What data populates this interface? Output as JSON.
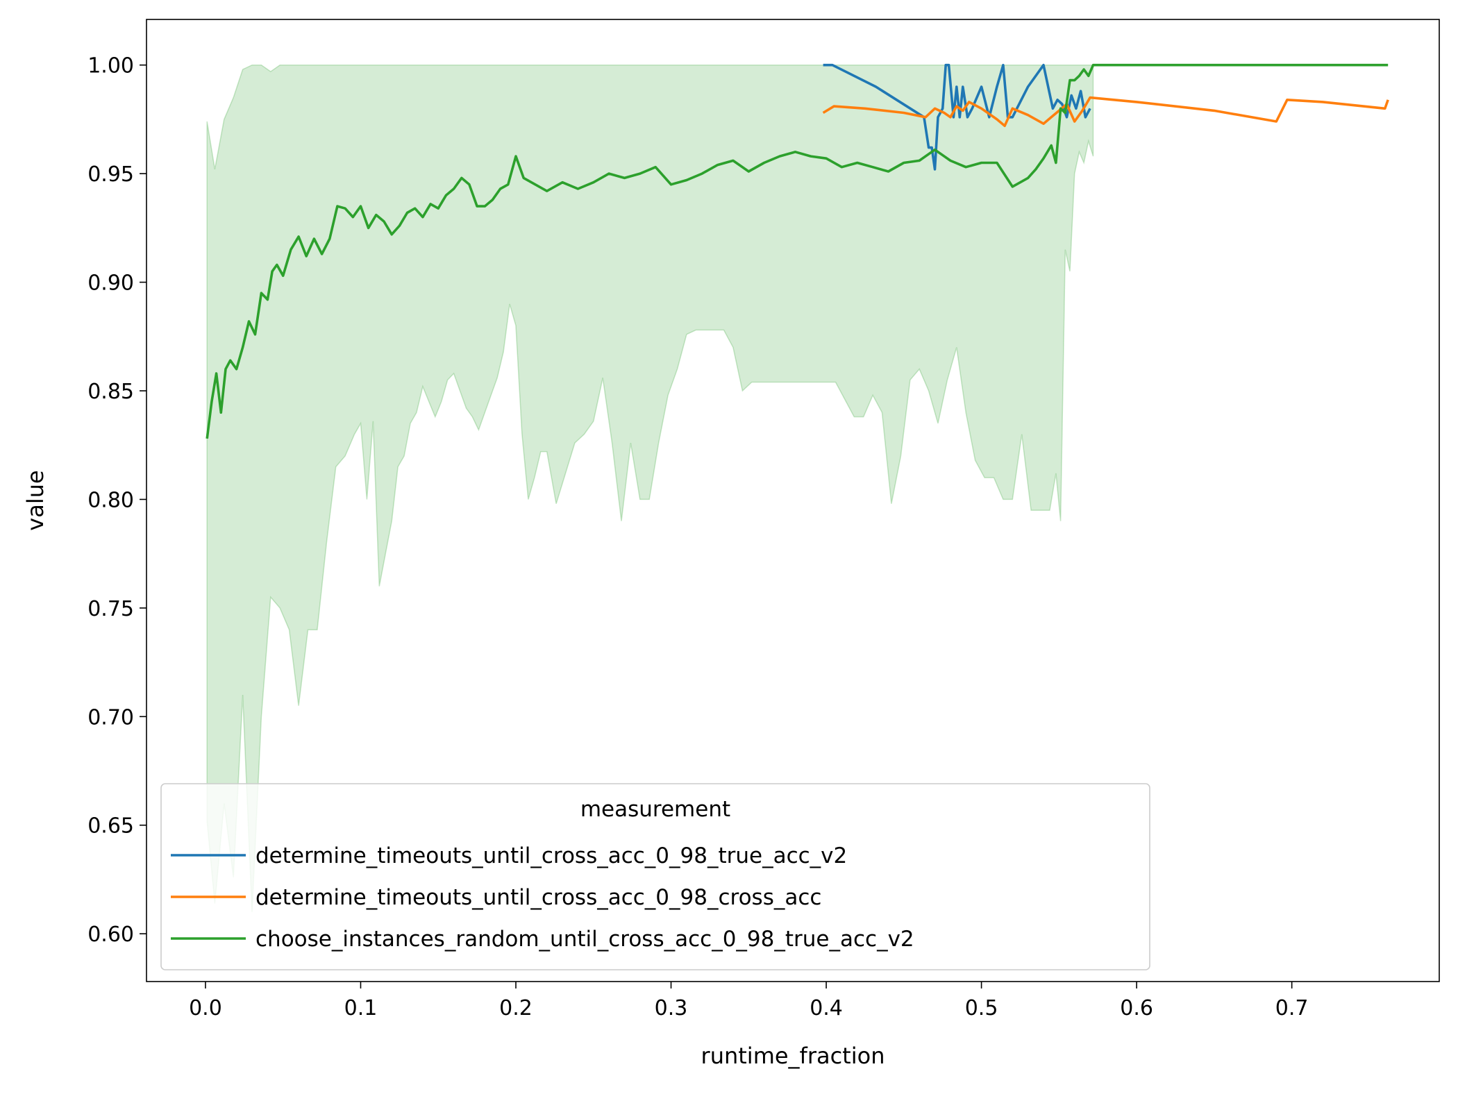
{
  "chart_data": {
    "type": "line",
    "xlabel": "runtime_fraction",
    "ylabel": "value",
    "xlim": [
      -0.038,
      0.795
    ],
    "ylim": [
      0.578,
      1.021
    ],
    "xticks": [
      0.0,
      0.1,
      0.2,
      0.3,
      0.4,
      0.5,
      0.6,
      0.7
    ],
    "xtick_labels": [
      "0.0",
      "0.1",
      "0.2",
      "0.3",
      "0.4",
      "0.5",
      "0.6",
      "0.7"
    ],
    "yticks": [
      0.6,
      0.65,
      0.7,
      0.75,
      0.8,
      0.85,
      0.9,
      0.95,
      1.0
    ],
    "ytick_labels": [
      "0.60",
      "0.65",
      "0.70",
      "0.75",
      "0.80",
      "0.85",
      "0.90",
      "0.95",
      "1.00"
    ],
    "grid": false,
    "legend": {
      "title": "measurement",
      "placement": "lower-left"
    },
    "series": [
      {
        "name": "determine_timeouts_until_cross_acc_0_98_true_acc_v2",
        "color": "#1f77b4",
        "x": [
          0.398,
          0.404,
          0.432,
          0.463,
          0.466,
          0.468,
          0.47,
          0.472,
          0.475,
          0.477,
          0.479,
          0.482,
          0.484,
          0.486,
          0.488,
          0.491,
          0.494,
          0.5,
          0.505,
          0.51,
          0.514,
          0.517,
          0.52,
          0.53,
          0.54,
          0.543,
          0.546,
          0.549,
          0.552,
          0.555,
          0.558,
          0.561,
          0.564,
          0.567,
          0.57
        ],
        "y": [
          1.0,
          1.0,
          0.99,
          0.976,
          0.962,
          0.962,
          0.952,
          0.976,
          0.98,
          1.0,
          1.0,
          0.976,
          0.99,
          0.976,
          0.99,
          0.976,
          0.98,
          0.99,
          0.976,
          0.99,
          1.0,
          0.976,
          0.976,
          0.99,
          1.0,
          0.99,
          0.98,
          0.984,
          0.982,
          0.976,
          0.986,
          0.98,
          0.988,
          0.976,
          0.98
        ]
      },
      {
        "name": "determine_timeouts_until_cross_acc_0_98_cross_acc",
        "color": "#ff7f0e",
        "x": [
          0.398,
          0.405,
          0.425,
          0.45,
          0.464,
          0.47,
          0.476,
          0.48,
          0.484,
          0.488,
          0.492,
          0.5,
          0.51,
          0.515,
          0.52,
          0.53,
          0.54,
          0.545,
          0.55,
          0.555,
          0.56,
          0.565,
          0.57,
          0.6,
          0.65,
          0.69,
          0.697,
          0.72,
          0.76,
          0.762
        ],
        "y": [
          0.978,
          0.981,
          0.98,
          0.978,
          0.976,
          0.98,
          0.978,
          0.976,
          0.981,
          0.979,
          0.983,
          0.98,
          0.975,
          0.972,
          0.98,
          0.977,
          0.973,
          0.976,
          0.979,
          0.982,
          0.974,
          0.979,
          0.985,
          0.983,
          0.979,
          0.974,
          0.984,
          0.983,
          0.98,
          0.984
        ]
      },
      {
        "name": "choose_instances_random_until_cross_acc_0_98_true_acc_v2",
        "color": "#2ca02c",
        "x": [
          0.001,
          0.004,
          0.007,
          0.01,
          0.013,
          0.016,
          0.02,
          0.024,
          0.028,
          0.032,
          0.036,
          0.04,
          0.043,
          0.046,
          0.05,
          0.055,
          0.06,
          0.065,
          0.07,
          0.075,
          0.08,
          0.085,
          0.09,
          0.095,
          0.1,
          0.105,
          0.11,
          0.115,
          0.12,
          0.125,
          0.13,
          0.135,
          0.14,
          0.145,
          0.15,
          0.155,
          0.16,
          0.165,
          0.17,
          0.175,
          0.18,
          0.185,
          0.19,
          0.195,
          0.2,
          0.205,
          0.21,
          0.22,
          0.23,
          0.24,
          0.25,
          0.26,
          0.27,
          0.28,
          0.29,
          0.3,
          0.31,
          0.32,
          0.33,
          0.34,
          0.35,
          0.36,
          0.37,
          0.38,
          0.39,
          0.4,
          0.41,
          0.42,
          0.43,
          0.44,
          0.45,
          0.46,
          0.47,
          0.48,
          0.49,
          0.5,
          0.51,
          0.52,
          0.525,
          0.53,
          0.535,
          0.54,
          0.545,
          0.548,
          0.551,
          0.554,
          0.557,
          0.56,
          0.563,
          0.566,
          0.569,
          0.572,
          0.6,
          0.65,
          0.7,
          0.762
        ],
        "y": [
          0.828,
          0.845,
          0.858,
          0.84,
          0.86,
          0.864,
          0.86,
          0.87,
          0.882,
          0.876,
          0.895,
          0.892,
          0.905,
          0.908,
          0.903,
          0.915,
          0.921,
          0.912,
          0.92,
          0.913,
          0.92,
          0.935,
          0.934,
          0.93,
          0.935,
          0.925,
          0.931,
          0.928,
          0.922,
          0.926,
          0.932,
          0.934,
          0.93,
          0.936,
          0.934,
          0.94,
          0.943,
          0.948,
          0.945,
          0.935,
          0.935,
          0.938,
          0.943,
          0.945,
          0.958,
          0.948,
          0.946,
          0.942,
          0.946,
          0.943,
          0.946,
          0.95,
          0.948,
          0.95,
          0.953,
          0.945,
          0.947,
          0.95,
          0.954,
          0.956,
          0.951,
          0.955,
          0.958,
          0.96,
          0.958,
          0.957,
          0.953,
          0.955,
          0.953,
          0.951,
          0.955,
          0.956,
          0.961,
          0.956,
          0.953,
          0.955,
          0.955,
          0.944,
          0.946,
          0.948,
          0.952,
          0.957,
          0.963,
          0.955,
          0.98,
          0.978,
          0.993,
          0.993,
          0.995,
          0.998,
          0.995,
          1.0,
          1.0,
          1.0,
          1.0,
          1.0
        ],
        "band_x": [
          0.001,
          0.006,
          0.012,
          0.018,
          0.024,
          0.03,
          0.036,
          0.042,
          0.048,
          0.054,
          0.06,
          0.066,
          0.072,
          0.078,
          0.084,
          0.09,
          0.096,
          0.1,
          0.104,
          0.108,
          0.112,
          0.116,
          0.12,
          0.124,
          0.128,
          0.132,
          0.136,
          0.14,
          0.144,
          0.148,
          0.152,
          0.156,
          0.16,
          0.164,
          0.168,
          0.172,
          0.176,
          0.18,
          0.184,
          0.188,
          0.192,
          0.196,
          0.2,
          0.204,
          0.208,
          0.212,
          0.216,
          0.22,
          0.226,
          0.232,
          0.238,
          0.244,
          0.25,
          0.256,
          0.262,
          0.268,
          0.274,
          0.28,
          0.286,
          0.292,
          0.298,
          0.304,
          0.31,
          0.316,
          0.322,
          0.328,
          0.334,
          0.34,
          0.346,
          0.352,
          0.358,
          0.364,
          0.37,
          0.376,
          0.382,
          0.388,
          0.394,
          0.4,
          0.406,
          0.412,
          0.418,
          0.424,
          0.43,
          0.436,
          0.442,
          0.448,
          0.454,
          0.46,
          0.466,
          0.472,
          0.478,
          0.484,
          0.49,
          0.496,
          0.502,
          0.508,
          0.514,
          0.52,
          0.526,
          0.532,
          0.538,
          0.544,
          0.548,
          0.551,
          0.554,
          0.557,
          0.56,
          0.563,
          0.566,
          0.569,
          0.572
        ],
        "band_lower": [
          0.652,
          0.614,
          0.66,
          0.626,
          0.71,
          0.61,
          0.7,
          0.755,
          0.75,
          0.74,
          0.705,
          0.74,
          0.74,
          0.78,
          0.815,
          0.82,
          0.83,
          0.835,
          0.8,
          0.836,
          0.76,
          0.775,
          0.79,
          0.815,
          0.82,
          0.835,
          0.84,
          0.852,
          0.845,
          0.838,
          0.845,
          0.855,
          0.858,
          0.85,
          0.842,
          0.838,
          0.832,
          0.84,
          0.848,
          0.856,
          0.868,
          0.89,
          0.88,
          0.83,
          0.8,
          0.81,
          0.822,
          0.822,
          0.798,
          0.812,
          0.826,
          0.83,
          0.836,
          0.856,
          0.826,
          0.79,
          0.826,
          0.8,
          0.8,
          0.826,
          0.848,
          0.86,
          0.876,
          0.878,
          0.878,
          0.878,
          0.878,
          0.87,
          0.85,
          0.854,
          0.854,
          0.854,
          0.854,
          0.854,
          0.854,
          0.854,
          0.854,
          0.854,
          0.854,
          0.846,
          0.838,
          0.838,
          0.848,
          0.84,
          0.798,
          0.82,
          0.855,
          0.86,
          0.85,
          0.835,
          0.855,
          0.87,
          0.84,
          0.818,
          0.81,
          0.81,
          0.8,
          0.8,
          0.83,
          0.795,
          0.795,
          0.795,
          0.812,
          0.79,
          0.915,
          0.905,
          0.95,
          0.96,
          0.955,
          0.965,
          0.958
        ],
        "band_upper": [
          0.974,
          0.952,
          0.975,
          0.985,
          0.998,
          1.0,
          1.0,
          0.997,
          1.0,
          1.0,
          1.0,
          1.0,
          1.0,
          1.0,
          1.0,
          1.0,
          1.0,
          1.0,
          1.0,
          1.0,
          1.0,
          1.0,
          1.0,
          1.0,
          1.0,
          1.0,
          1.0,
          1.0,
          1.0,
          1.0,
          1.0,
          1.0,
          1.0,
          1.0,
          1.0,
          1.0,
          1.0,
          1.0,
          1.0,
          1.0,
          1.0,
          1.0,
          1.0,
          1.0,
          1.0,
          1.0,
          1.0,
          1.0,
          1.0,
          1.0,
          1.0,
          1.0,
          1.0,
          1.0,
          1.0,
          1.0,
          1.0,
          1.0,
          1.0,
          1.0,
          1.0,
          1.0,
          1.0,
          1.0,
          1.0,
          1.0,
          1.0,
          1.0,
          1.0,
          1.0,
          1.0,
          1.0,
          1.0,
          1.0,
          1.0,
          1.0,
          1.0,
          1.0,
          1.0,
          1.0,
          1.0,
          1.0,
          1.0,
          1.0,
          1.0,
          1.0,
          1.0,
          1.0,
          1.0,
          1.0,
          1.0,
          1.0,
          1.0,
          1.0,
          1.0,
          1.0,
          1.0,
          1.0,
          1.0,
          1.0,
          1.0,
          1.0,
          1.0,
          1.0,
          1.0,
          1.0,
          1.0,
          1.0,
          1.0,
          1.0,
          1.0
        ]
      }
    ]
  }
}
